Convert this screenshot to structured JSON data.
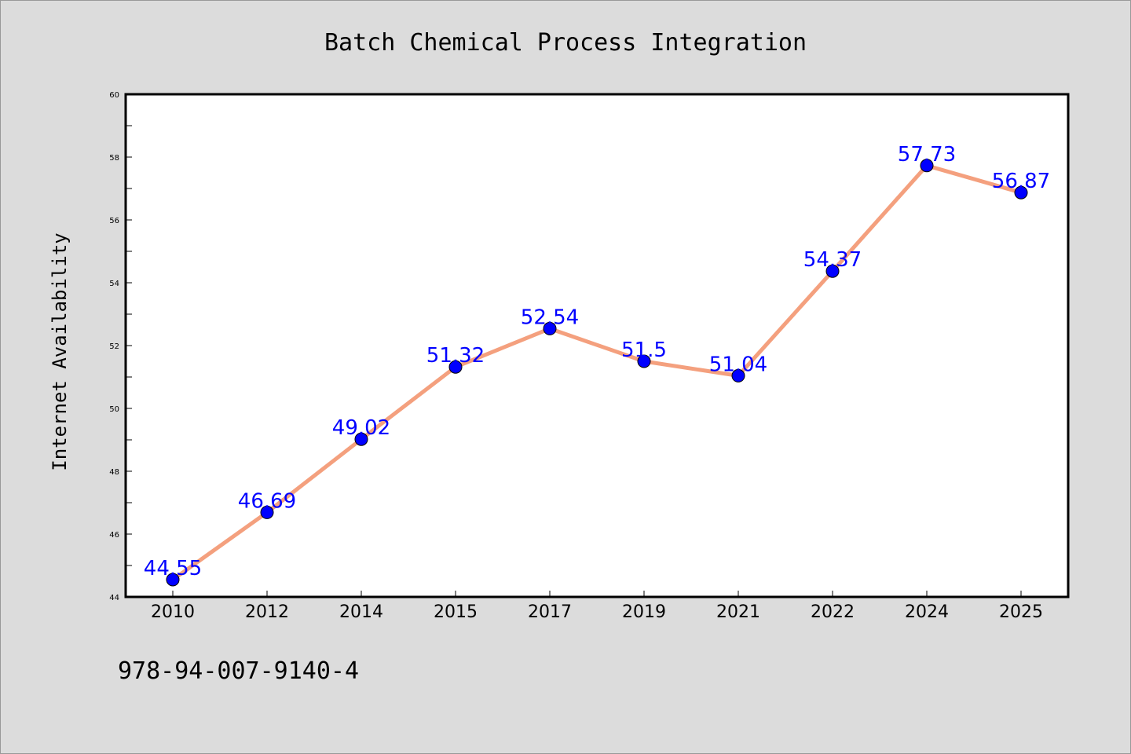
{
  "chart_data": {
    "type": "line",
    "title": "Batch Chemical Process Integration",
    "xlabel": "",
    "ylabel": "Internet Availability",
    "categories": [
      "2010",
      "2012",
      "2014",
      "2015",
      "2017",
      "2019",
      "2021",
      "2022",
      "2024",
      "2025"
    ],
    "series": [
      {
        "values": [
          44.55,
          46.69,
          49.02,
          51.32,
          52.54,
          51.5,
          51.04,
          54.37,
          57.73,
          56.87
        ],
        "data_labels": [
          "44.55",
          "46.69",
          "49.02",
          "51.32",
          "52.54",
          "51.5",
          "51.04",
          "54.37",
          "57.73",
          "56.87"
        ]
      }
    ],
    "ylim": [
      44,
      60
    ],
    "y_ticks": [
      "44",
      "46",
      "48",
      "50",
      "52",
      "54",
      "56",
      "58",
      "60"
    ],
    "grid": false,
    "line_color": "#f4a07e",
    "marker_color": "#0000ff",
    "label_color": "#0000ff"
  },
  "footer": {
    "code": "978-94-007-9140-4"
  }
}
